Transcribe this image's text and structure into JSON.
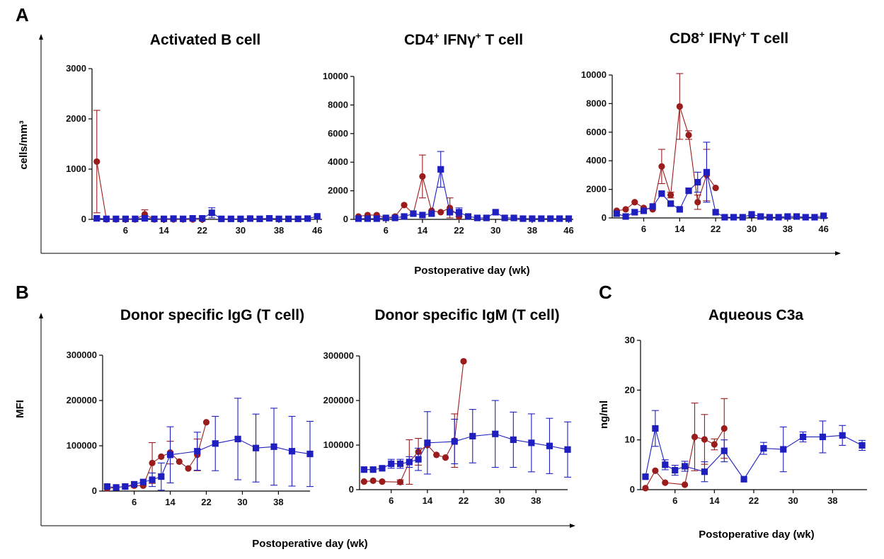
{
  "colors": {
    "red": "#9b1c1c",
    "blue": "#1f1fc0",
    "axis": "#000000"
  },
  "panels": {
    "a": {
      "letter": "A",
      "xlabel": "Postoperative day (wk)",
      "ylabel": "cells/mm³"
    },
    "b": {
      "letter": "B",
      "xlabel": "Postoperative day (wk)",
      "ylabel": "MFI"
    },
    "c": {
      "letter": "C",
      "xlabel": "Postoperative day (wk)",
      "ylabel": "ng/ml"
    }
  },
  "chart_data": [
    {
      "id": "a1",
      "type": "line",
      "title": "Activated B cell",
      "title_sup1": "",
      "title_mid": "",
      "title_sup2": "",
      "title_end": "",
      "ylim": [
        0,
        3000
      ],
      "yticks": [
        0,
        1000,
        2000,
        3000
      ],
      "xlim": [
        -1,
        47
      ],
      "xticks": [
        6,
        14,
        22,
        30,
        38,
        46
      ],
      "series": [
        {
          "color": "red",
          "marker": "circle",
          "x": [
            0,
            2,
            4,
            6,
            8,
            10,
            12,
            14,
            16,
            18,
            20,
            22
          ],
          "y": [
            1150,
            0,
            0,
            0,
            0,
            100,
            0,
            0,
            0,
            0,
            0,
            0
          ],
          "err": [
            1020,
            0,
            0,
            0,
            0,
            90,
            0,
            0,
            0,
            0,
            0,
            0
          ]
        },
        {
          "color": "blue",
          "marker": "square",
          "x": [
            0,
            2,
            4,
            6,
            8,
            10,
            12,
            14,
            16,
            18,
            20,
            22,
            24,
            26,
            28,
            30,
            32,
            34,
            36,
            38,
            40,
            42,
            44,
            46
          ],
          "y": [
            20,
            10,
            10,
            10,
            10,
            20,
            10,
            10,
            15,
            10,
            20,
            20,
            130,
            10,
            10,
            10,
            15,
            10,
            20,
            10,
            10,
            10,
            15,
            60
          ],
          "err": [
            0,
            0,
            0,
            0,
            0,
            0,
            0,
            0,
            0,
            0,
            0,
            0,
            100,
            0,
            0,
            0,
            0,
            0,
            0,
            0,
            0,
            0,
            0,
            0
          ]
        }
      ]
    },
    {
      "id": "a2",
      "type": "line",
      "title": "CD4",
      "title_sup1": "+",
      "title_mid": " IFNγ",
      "title_sup2": "+",
      "title_end": " T cell",
      "ylim": [
        0,
        10000
      ],
      "yticks": [
        0,
        2000,
        4000,
        6000,
        8000,
        10000
      ],
      "xlim": [
        -1,
        47
      ],
      "xticks": [
        6,
        14,
        22,
        30,
        38,
        46
      ],
      "series": [
        {
          "color": "red",
          "marker": "circle",
          "x": [
            0,
            2,
            4,
            6,
            8,
            10,
            12,
            14,
            16,
            18,
            20,
            22
          ],
          "y": [
            200,
            300,
            300,
            100,
            200,
            1000,
            400,
            3000,
            600,
            500,
            800,
            200
          ],
          "err": [
            0,
            0,
            0,
            0,
            0,
            0,
            0,
            1500,
            0,
            0,
            700,
            0
          ]
        },
        {
          "color": "blue",
          "marker": "square",
          "x": [
            0,
            2,
            4,
            6,
            8,
            10,
            12,
            14,
            16,
            18,
            20,
            22,
            24,
            26,
            28,
            30,
            32,
            34,
            36,
            38,
            40,
            42,
            44,
            46
          ],
          "y": [
            50,
            50,
            50,
            100,
            100,
            200,
            400,
            300,
            400,
            3500,
            500,
            500,
            200,
            100,
            100,
            500,
            100,
            100,
            50,
            50,
            50,
            50,
            50,
            50
          ],
          "err": [
            0,
            0,
            0,
            0,
            0,
            0,
            0,
            0,
            0,
            1250,
            0,
            300,
            0,
            0,
            0,
            0,
            0,
            0,
            0,
            0,
            0,
            0,
            0,
            0
          ]
        }
      ]
    },
    {
      "id": "a3",
      "type": "line",
      "title": "CD8",
      "title_sup1": "+",
      "title_mid": " IFNγ",
      "title_sup2": "+",
      "title_end": " T cell",
      "ylim": [
        0,
        10000
      ],
      "yticks": [
        0,
        2000,
        4000,
        6000,
        8000,
        10000
      ],
      "xlim": [
        -1,
        47
      ],
      "xticks": [
        6,
        14,
        22,
        30,
        38,
        46
      ],
      "series": [
        {
          "color": "red",
          "marker": "circle",
          "x": [
            0,
            2,
            4,
            6,
            8,
            10,
            12,
            14,
            16,
            18,
            20,
            22
          ],
          "y": [
            500,
            600,
            1100,
            700,
            600,
            3600,
            1600,
            7800,
            5800,
            1100,
            3000,
            2100
          ],
          "err": [
            0,
            0,
            0,
            0,
            0,
            1200,
            200,
            2300,
            300,
            500,
            1800,
            0
          ]
        },
        {
          "color": "blue",
          "marker": "square",
          "x": [
            0,
            2,
            4,
            6,
            8,
            10,
            12,
            14,
            16,
            18,
            20,
            22,
            24,
            26,
            28,
            30,
            32,
            34,
            36,
            38,
            40,
            42,
            44,
            46
          ],
          "y": [
            300,
            100,
            400,
            500,
            800,
            1700,
            1000,
            600,
            1900,
            2500,
            3200,
            400,
            50,
            50,
            50,
            250,
            100,
            50,
            50,
            100,
            100,
            50,
            50,
            150
          ],
          "err": [
            0,
            0,
            0,
            0,
            0,
            0,
            0,
            0,
            0,
            700,
            2100,
            0,
            0,
            0,
            0,
            0,
            0,
            0,
            0,
            0,
            0,
            0,
            0,
            0
          ]
        }
      ]
    },
    {
      "id": "b1",
      "type": "line",
      "title": "Donor specific IgG (T cell)",
      "ylim": [
        0,
        300000
      ],
      "yticks": [
        0,
        100000,
        200000,
        300000
      ],
      "xlim": [
        -1,
        45
      ],
      "xticks": [
        6,
        14,
        22,
        30,
        38
      ],
      "series": [
        {
          "color": "red",
          "marker": "circle",
          "x": [
            0,
            2,
            4,
            6,
            8,
            10,
            12,
            14,
            16,
            18,
            20,
            22
          ],
          "y": [
            6000,
            8000,
            10000,
            12000,
            12000,
            62000,
            76000,
            85000,
            65000,
            50000,
            80000,
            152000
          ],
          "err": [
            0,
            0,
            0,
            0,
            0,
            45000,
            0,
            25000,
            0,
            0,
            35000,
            0
          ]
        },
        {
          "color": "blue",
          "marker": "square",
          "x": [
            0,
            2,
            4,
            6,
            8,
            10,
            12,
            14,
            20,
            24,
            29,
            33,
            37,
            41,
            45
          ],
          "y": [
            10000,
            8000,
            10000,
            15000,
            20000,
            25000,
            32000,
            80000,
            88000,
            105000,
            115000,
            95000,
            98000,
            88000,
            82000
          ],
          "err": [
            0,
            0,
            0,
            0,
            0,
            15000,
            30000,
            62000,
            42000,
            60000,
            90000,
            75000,
            85000,
            77000,
            72000
          ]
        }
      ]
    },
    {
      "id": "b2",
      "type": "line",
      "title": "Donor specific IgM (T cell)",
      "ylim": [
        0,
        300000
      ],
      "yticks": [
        0,
        100000,
        200000,
        300000
      ],
      "xlim": [
        -1,
        45
      ],
      "xticks": [
        6,
        14,
        22,
        30,
        38
      ],
      "series": [
        {
          "color": "red",
          "marker": "circle",
          "x": [
            0,
            2,
            4,
            8,
            10,
            12,
            14,
            16,
            18,
            20,
            22
          ],
          "y": [
            18000,
            20000,
            18000,
            17000,
            62000,
            85000,
            100000,
            78000,
            72000,
            110000,
            288000
          ],
          "err": [
            0,
            0,
            0,
            5000,
            50000,
            30000,
            0,
            0,
            0,
            60000,
            0
          ]
        },
        {
          "color": "blue",
          "marker": "square",
          "x": [
            0,
            2,
            4,
            6,
            8,
            10,
            12,
            14,
            20,
            24,
            29,
            33,
            37,
            41,
            45
          ],
          "y": [
            45000,
            45000,
            48000,
            58000,
            58000,
            62000,
            68000,
            105000,
            108000,
            120000,
            125000,
            112000,
            105000,
            98000,
            90000
          ],
          "err": [
            0,
            0,
            0,
            10000,
            10000,
            12000,
            25000,
            70000,
            50000,
            60000,
            75000,
            62000,
            65000,
            62000,
            62000
          ]
        }
      ]
    },
    {
      "id": "c1",
      "type": "line",
      "title": "Aqueous C3a",
      "ylim": [
        0,
        30
      ],
      "yticks": [
        0,
        10,
        20,
        30
      ],
      "xlim": [
        -1,
        45
      ],
      "xticks": [
        6,
        14,
        22,
        30,
        38
      ],
      "series": [
        {
          "color": "red",
          "marker": "circle",
          "x": [
            0,
            2,
            4,
            8,
            10,
            12,
            14,
            16
          ],
          "y": [
            0.3,
            3.8,
            1.4,
            1.0,
            10.6,
            10.1,
            9.1,
            12.3
          ],
          "err": [
            0,
            0,
            0,
            0,
            6.8,
            5.0,
            1.1,
            6.0
          ]
        },
        {
          "color": "blue",
          "marker": "square",
          "x": [
            0,
            2,
            4,
            6,
            8,
            12,
            16,
            20,
            24,
            28,
            32,
            36,
            40,
            44
          ],
          "y": [
            2.6,
            12.3,
            5.0,
            3.9,
            4.7,
            3.6,
            7.8,
            2.1,
            8.3,
            8.1,
            10.6,
            10.6,
            10.9,
            8.9
          ],
          "err": [
            0,
            3.6,
            1.0,
            1.0,
            1.0,
            2.0,
            2.2,
            0,
            1.2,
            4.5,
            1.0,
            3.2,
            2.0,
            1.0
          ]
        }
      ]
    }
  ]
}
